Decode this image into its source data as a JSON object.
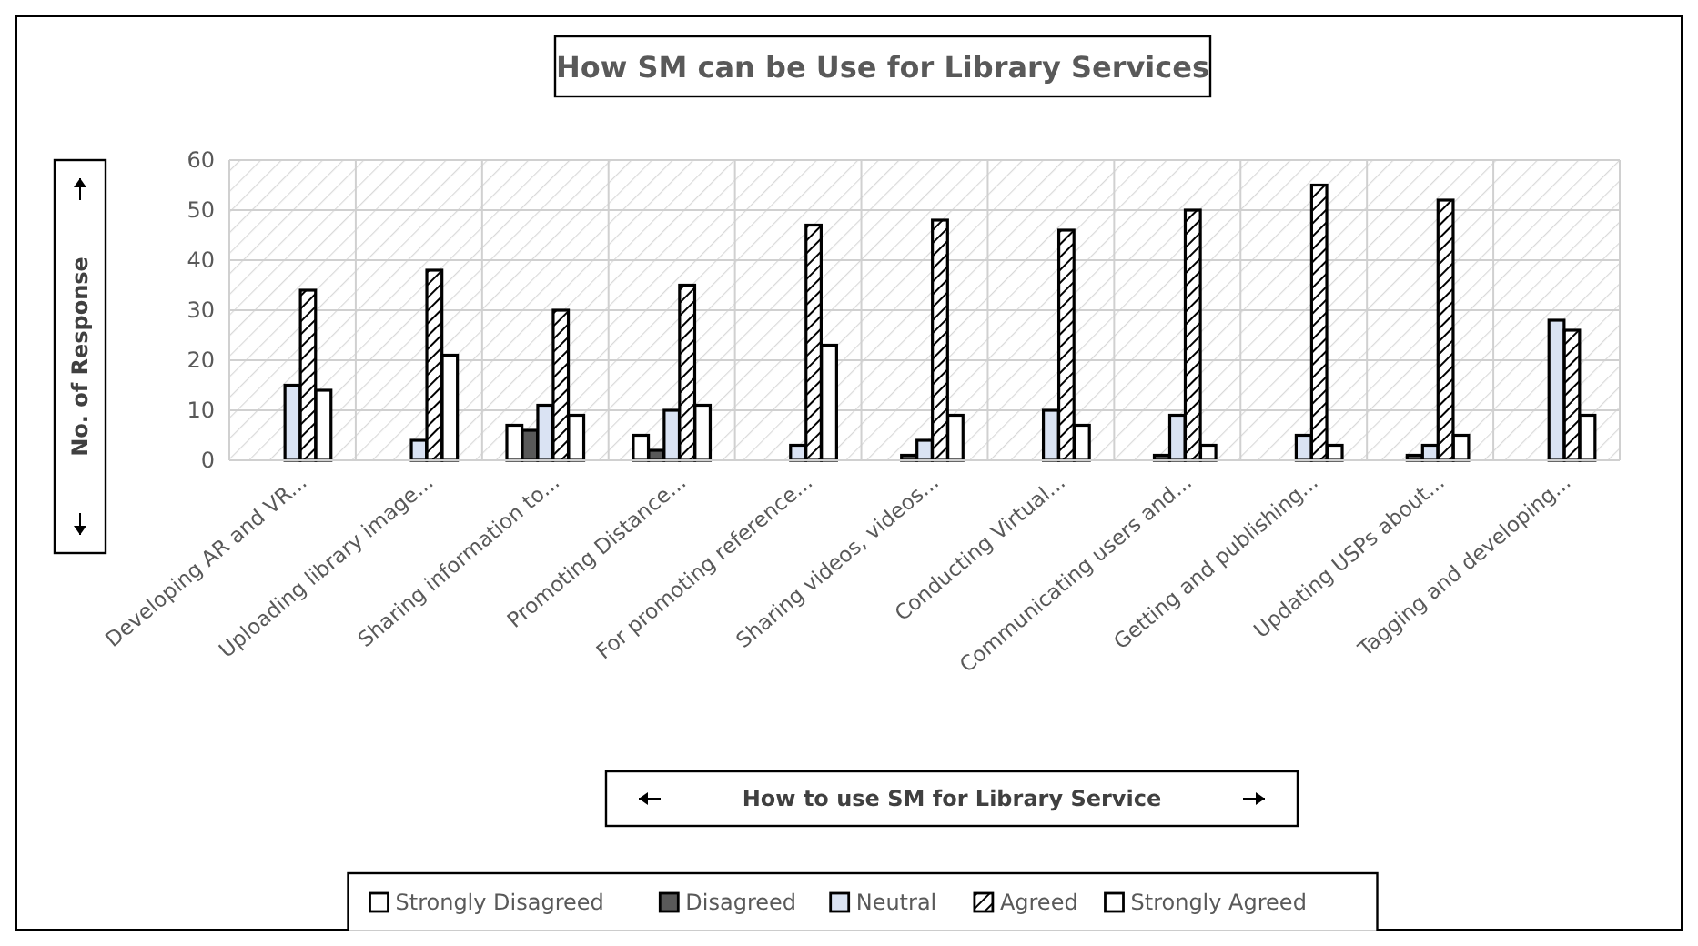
{
  "chart_data": {
    "type": "bar",
    "title": "How SM can be Use for Library Services",
    "xlabel": "How to use SM for Library Service",
    "ylabel": "No. of Response",
    "categories": [
      "Developing AR and VR...",
      "Uploading library image...",
      "Sharing information to...",
      "Promoting Distance...",
      "For promoting reference...",
      "Sharing videos, videos...",
      "Conducting Virtual...",
      "Communicating users and...",
      "Getting and publishing...",
      "Updating USPs about...",
      "Tagging and developing..."
    ],
    "series": [
      {
        "name": "Strongly Disagreed",
        "color": "#ffffff",
        "values": [
          0,
          0,
          7,
          5,
          0,
          0,
          0,
          0,
          0,
          0,
          0
        ]
      },
      {
        "name": "Disagreed",
        "color": "#595959",
        "values": [
          0,
          0,
          6,
          2,
          0,
          1,
          0,
          1,
          0,
          1,
          0
        ]
      },
      {
        "name": "Neutral",
        "color": "#dae3f3",
        "values": [
          15,
          4,
          11,
          10,
          3,
          4,
          10,
          9,
          5,
          3,
          28
        ]
      },
      {
        "name": "Agreed",
        "color": "#000000",
        "values": [
          34,
          38,
          30,
          35,
          47,
          48,
          46,
          50,
          55,
          52,
          26
        ]
      },
      {
        "name": "Strongly Agreed",
        "color": "#ffffff",
        "values": [
          14,
          21,
          9,
          11,
          23,
          9,
          7,
          3,
          3,
          5,
          9
        ]
      }
    ],
    "ylim": [
      0,
      60
    ],
    "yticks": [
      0,
      10,
      20,
      30,
      40,
      50,
      60
    ],
    "grid": true,
    "legend": "bottom"
  }
}
